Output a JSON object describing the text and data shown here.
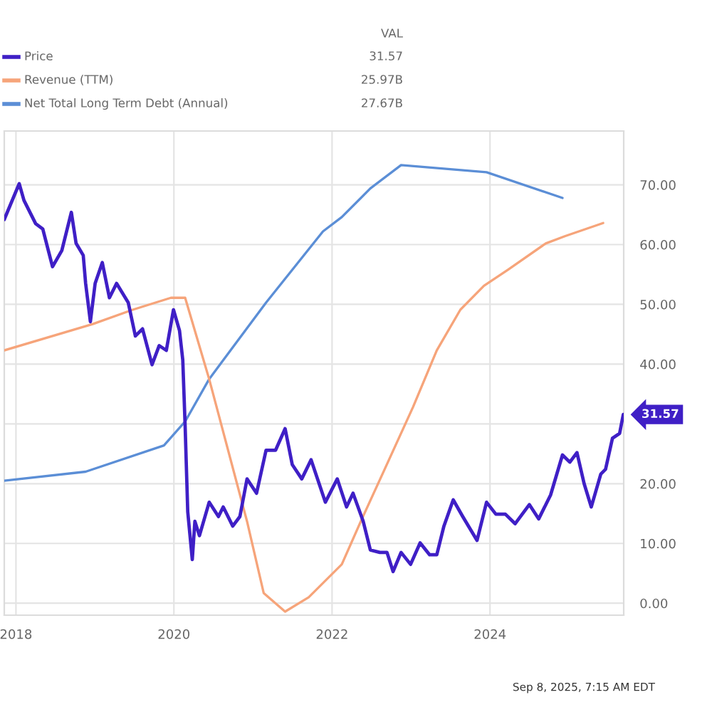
{
  "chart_data": {
    "type": "line",
    "xlim": [
      "2017-11-08",
      "2025-09-10"
    ],
    "ylim": [
      -2,
      79
    ],
    "xticks": [
      "2018",
      "2020",
      "2022",
      "2024"
    ],
    "yticks": [
      {
        "value": 0,
        "label": "0.00"
      },
      {
        "value": 10,
        "label": "10.00"
      },
      {
        "value": 20,
        "label": "20.00"
      },
      {
        "value": 30,
        "label": null
      },
      {
        "value": 40,
        "label": "40.00"
      },
      {
        "value": 50,
        "label": "50.00"
      },
      {
        "value": 60,
        "label": "60.00"
      },
      {
        "value": 70,
        "label": "70.00"
      }
    ],
    "grid": true,
    "legend": "top left",
    "legend_title": "VAL",
    "annotations": [
      "31.57",
      "25.97B",
      "27.67B",
      "Sep 8, 2025, 7:15 AM EDT"
    ],
    "series": [
      {
        "name": "Price",
        "color": "#3f1fc6",
        "x": [
          "2017-11-08",
          "2018-01-16",
          "2018-02-07",
          "2018-04-02",
          "2018-05-05",
          "2018-06-19",
          "2018-08-01",
          "2018-09-14",
          "2018-10-06",
          "2018-11-08",
          "2018-11-19",
          "2018-12-11",
          "2019-01-02",
          "2019-02-04",
          "2019-03-09",
          "2019-04-11",
          "2019-06-04",
          "2019-07-07",
          "2019-08-09",
          "2019-09-22",
          "2019-10-25",
          "2019-11-27",
          "2019-12-30",
          "2020-01-27",
          "2020-02-11",
          "2020-02-22",
          "2020-03-05",
          "2020-03-26",
          "2020-04-07",
          "2020-04-28",
          "2020-06-12",
          "2020-07-25",
          "2020-08-16",
          "2020-09-29",
          "2020-11-01",
          "2020-12-04",
          "2021-01-17",
          "2021-03-02",
          "2021-04-15",
          "2021-05-29",
          "2021-07-01",
          "2021-08-14",
          "2021-09-26",
          "2021-12-01",
          "2022-01-25",
          "2022-03-09",
          "2022-04-08",
          "2022-05-25",
          "2022-06-27",
          "2022-08-10",
          "2022-09-12",
          "2022-10-10",
          "2022-11-16",
          "2022-12-30",
          "2023-02-12",
          "2023-03-28",
          "2023-04-30",
          "2023-06-02",
          "2023-07-15",
          "2023-08-28",
          "2023-11-02",
          "2023-12-16",
          "2024-01-28",
          "2024-03-12",
          "2024-04-26",
          "2024-07-01",
          "2024-08-13",
          "2024-10-07",
          "2024-12-01",
          "2025-01-04",
          "2025-02-06",
          "2025-03-11",
          "2025-04-13",
          "2025-05-27",
          "2025-06-18",
          "2025-07-20",
          "2025-08-22",
          "2025-09-08"
        ],
        "values": [
          64.2,
          70.2,
          67.4,
          63.5,
          62.6,
          56.3,
          59.0,
          65.4,
          60.2,
          58.2,
          53.5,
          47.1,
          53.5,
          57.0,
          51.1,
          53.5,
          50.3,
          44.7,
          45.9,
          39.9,
          43.1,
          42.3,
          49.1,
          45.6,
          40.7,
          29.6,
          15.3,
          7.3,
          13.7,
          11.3,
          16.9,
          14.5,
          16.1,
          12.9,
          14.5,
          20.8,
          18.4,
          25.6,
          25.6,
          29.2,
          23.2,
          20.8,
          24.0,
          16.9,
          20.8,
          16.1,
          18.4,
          13.7,
          8.9,
          8.5,
          8.5,
          5.3,
          8.5,
          6.5,
          10.1,
          8.1,
          8.1,
          12.9,
          17.3,
          14.5,
          10.5,
          16.9,
          14.9,
          14.9,
          13.3,
          16.5,
          14.1,
          18.1,
          24.8,
          23.6,
          25.2,
          20.0,
          16.1,
          21.6,
          22.4,
          27.6,
          28.4,
          31.57
        ],
        "value_labels": [
          null,
          null,
          null,
          null,
          null,
          null,
          null,
          null,
          null,
          null,
          null,
          null,
          null,
          null,
          null,
          null,
          null,
          null,
          null,
          null,
          null,
          null,
          null,
          null,
          null,
          null,
          null,
          null,
          null,
          null,
          null,
          null,
          null,
          null,
          null,
          null,
          null,
          null,
          null,
          null,
          null,
          null,
          null,
          null,
          null,
          null,
          null,
          null,
          null,
          null,
          null,
          null,
          null,
          null,
          null,
          null,
          null,
          null,
          null,
          null,
          null,
          null,
          null,
          null,
          null,
          null,
          null,
          null,
          null,
          null,
          null,
          null,
          null,
          null,
          null,
          null,
          null,
          "31.57"
        ]
      },
      {
        "name": "Revenue (TTM)",
        "color": "#f6a47a",
        "x": [
          "2017-11-08",
          "2018-12-22",
          "2019-06-25",
          "2019-12-18",
          "2020-02-22",
          "2020-06-12",
          "2020-12-04",
          "2021-02-19",
          "2021-05-29",
          "2021-09-15",
          "2022-02-15",
          "2022-05-14",
          "2022-09-01",
          "2023-01-10",
          "2023-04-30",
          "2023-08-17",
          "2023-12-04",
          "2024-03-24",
          "2024-09-15",
          "2024-12-12",
          "2025-06-07"
        ],
        "values": [
          42.3,
          46.7,
          49.1,
          51.1,
          51.1,
          37.5,
          13.7,
          1.7,
          -1.4,
          1.0,
          6.5,
          13.7,
          22.4,
          32.8,
          42.3,
          49.1,
          53.1,
          55.8,
          60.2,
          61.4,
          63.6
        ]
      },
      {
        "name": "Net Total Long Term Debt (Annual)",
        "color": "#5b8ed6",
        "x": [
          "2017-11-08",
          "2018-11-19",
          "2019-11-16",
          "2020-02-22",
          "2020-06-12",
          "2021-03-02",
          "2021-11-20",
          "2022-02-15",
          "2022-06-27",
          "2022-11-16",
          "2023-12-16",
          "2024-12-01"
        ],
        "values": [
          20.5,
          22.0,
          26.4,
          30.4,
          37.5,
          50.3,
          62.2,
          64.6,
          69.4,
          73.3,
          72.1,
          67.8
        ]
      }
    ]
  }
}
